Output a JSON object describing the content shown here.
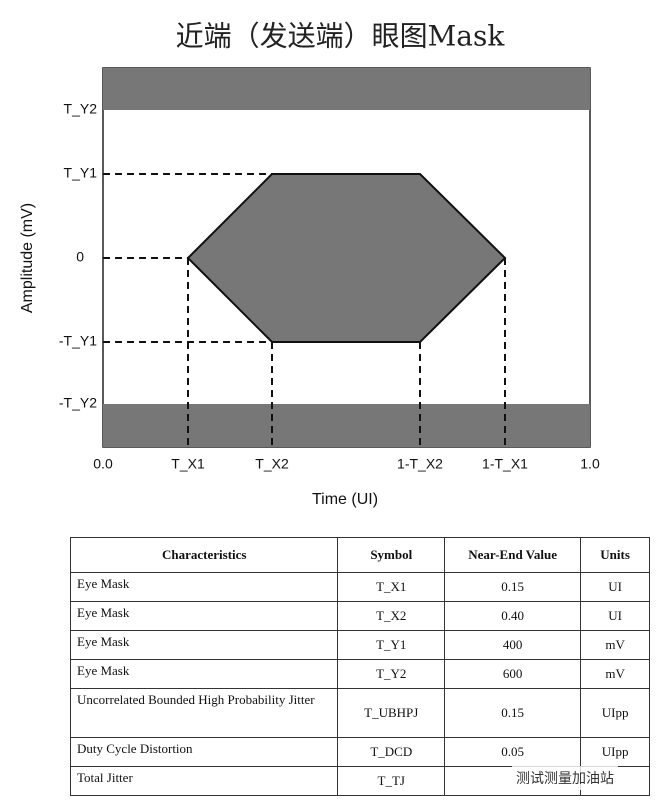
{
  "title": "近端（发送端）眼图Mask",
  "diagram": {
    "y_labels": [
      "T_Y2",
      "T_Y1",
      "0",
      "-T_Y1",
      "-T_Y2"
    ],
    "x_labels": [
      "0.0",
      "T_X1",
      "T_X2",
      "1-T_X2",
      "1-T_X1",
      "1.0"
    ],
    "x_axis_title": "Time (UI)",
    "y_axis_title": "Amplitude (mV)"
  },
  "table": {
    "header": [
      "Characteristics",
      "Symbol",
      "Near-End Value",
      "Units"
    ],
    "rows": [
      [
        "Eye Mask",
        "T_X1",
        "0.15",
        "UI"
      ],
      [
        "Eye Mask",
        "T_X2",
        "0.40",
        "UI"
      ],
      [
        "Eye Mask",
        "T_Y1",
        "400",
        "mV"
      ],
      [
        "Eye Mask",
        "T_Y2",
        "600",
        "mV"
      ],
      [
        "Uncorrelated Bounded High Probability Jitter",
        "T_UBHPJ",
        "0.15",
        "UIpp"
      ],
      [
        "Duty Cycle Distortion",
        "T_DCD",
        "0.05",
        "UIpp"
      ],
      [
        "Total Jitter",
        "T_TJ",
        "",
        ""
      ]
    ]
  },
  "watermark": "测试测量加油站"
}
